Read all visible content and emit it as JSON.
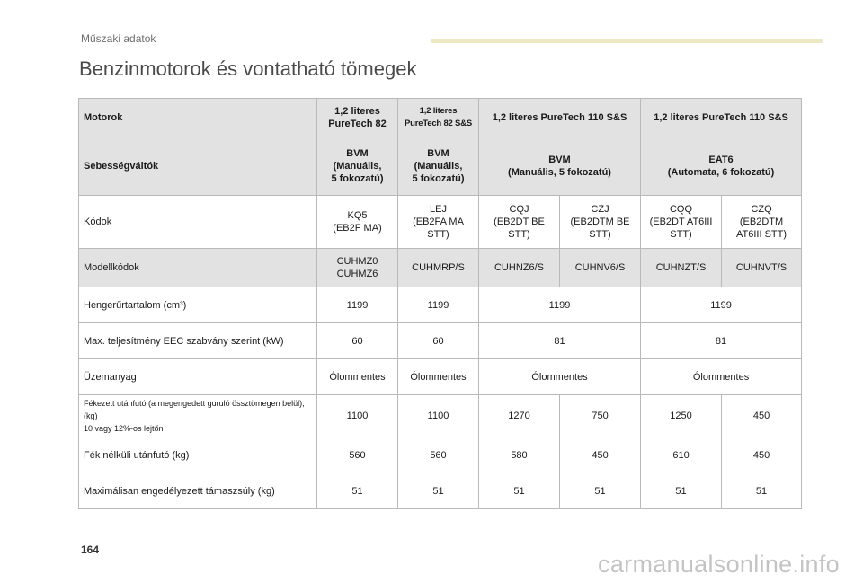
{
  "header": {
    "section": "Műszaki adatok",
    "title": "Benzinmotorok és vontatható tömegek"
  },
  "table": {
    "rows": {
      "motor": {
        "label": "Motorok",
        "c1": "1,2 literes\nPureTech 82",
        "c2": "1,2 literes\nPureTech 82 S&S",
        "c3": "1,2 literes PureTech 110 S&S",
        "c4": "1,2 literes PureTech 110 S&S"
      },
      "gearbox": {
        "label": "Sebességváltók",
        "c1": "BVM\n(Manuális,\n5 fokozatú)",
        "c2": "BVM\n(Manuális,\n5 fokozatú)",
        "c3": "BVM\n(Manuális, 5 fokozatú)",
        "c4": "EAT6\n(Automata, 6 fokozatú)"
      },
      "codes": {
        "label": "Kódok",
        "values": [
          "KQ5\n(EB2F MA)",
          "LEJ\n(EB2FA MA\nSTT)",
          "CQJ\n(EB2DT BE\nSTT)",
          "CZJ\n(EB2DTM BE\nSTT)",
          "CQQ\n(EB2DT AT6III\nSTT)",
          "CZQ\n(EB2DTM\nAT6III STT)"
        ]
      },
      "model_codes": {
        "label": "Modellkódok",
        "values": [
          "CUHMZ0\nCUHMZ6",
          "CUHMRP/S",
          "CUHNZ6/S",
          "CUHNV6/S",
          "CUHNZT/S",
          "CUHNVT/S"
        ]
      },
      "displacement": {
        "label": "Hengerűrtartalom (cm³)",
        "values": [
          "1199",
          "1199",
          "1199",
          "1199"
        ]
      },
      "power": {
        "label": "Max. teljesítmény EEC szabvány szerint (kW)",
        "values": [
          "60",
          "60",
          "81",
          "81"
        ]
      },
      "fuel": {
        "label": "Üzemanyag",
        "values": [
          "Ólommentes",
          "Ólommentes",
          "Ólommentes",
          "Ólommentes"
        ]
      },
      "braked_trailer": {
        "label": "Fékezett utánfutó (a megengedett guruló össztömegen belül), (kg)\n10 vagy 12%-os lejtőn",
        "values": [
          "1100",
          "1100",
          "1270",
          "750",
          "1250",
          "450"
        ]
      },
      "unbraked_trailer": {
        "label": "Fék nélküli utánfutó (kg)",
        "values": [
          "560",
          "560",
          "580",
          "450",
          "610",
          "450"
        ]
      },
      "nose_weight": {
        "label": "Maximálisan engedélyezett támaszsúly (kg)",
        "values": [
          "51",
          "51",
          "51",
          "51",
          "51",
          "51"
        ]
      }
    }
  },
  "footer": {
    "page_number": "164",
    "watermark": "carmanualsonline.info"
  },
  "colors": {
    "accent_bar": "#ece9c4",
    "row_shade": "#e2e2e2",
    "border": "#b9b9b9"
  }
}
